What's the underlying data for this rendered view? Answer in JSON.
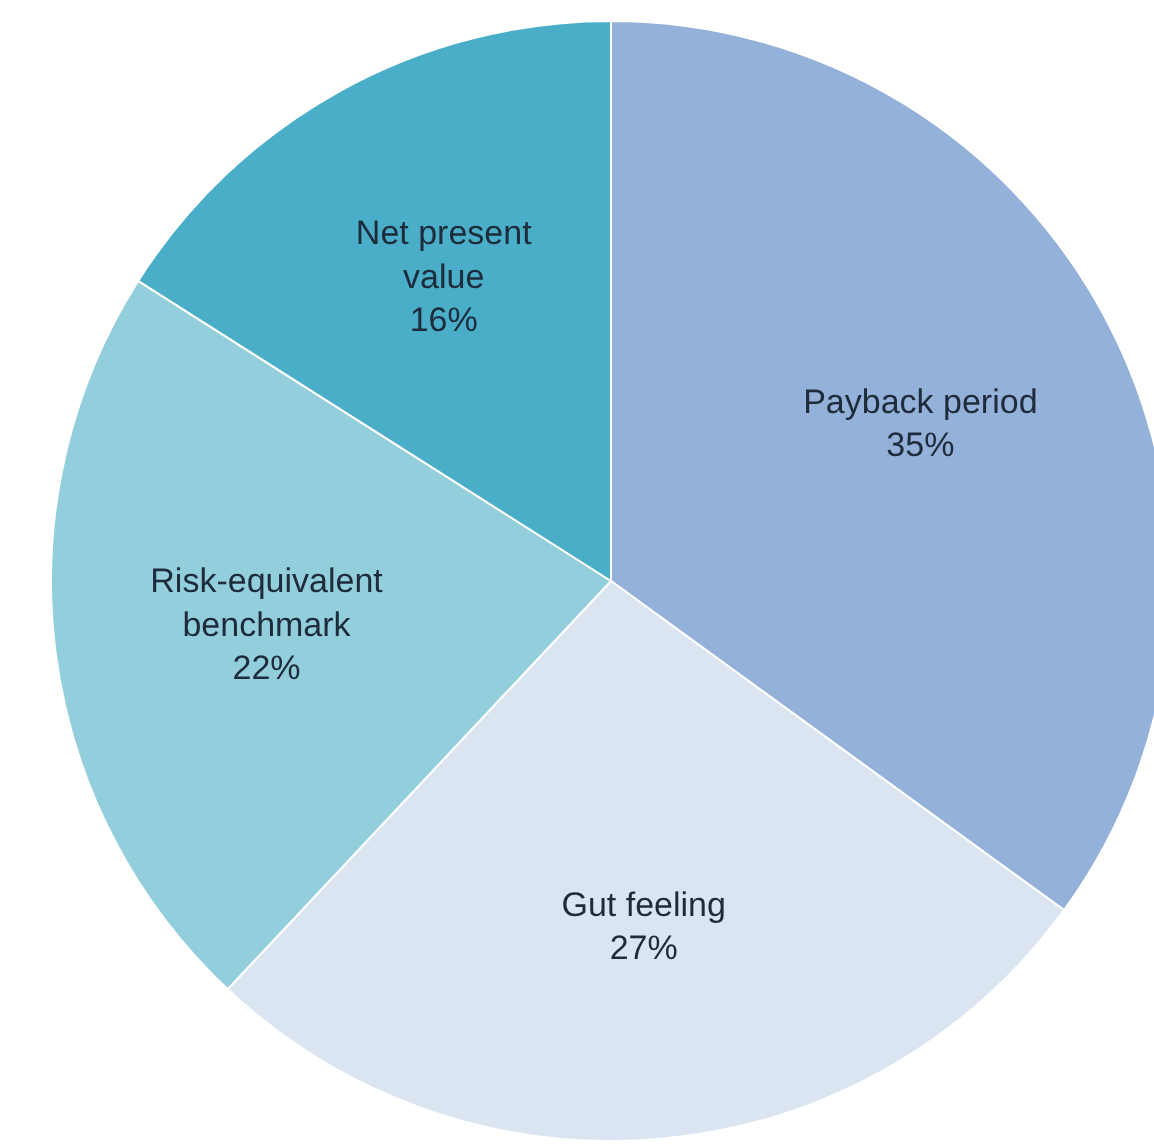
{
  "chart_data": {
    "type": "pie",
    "categories": [
      "Payback period",
      "Gut feeling",
      "Risk-equivalent benchmark",
      "Net present value"
    ],
    "values": [
      35,
      27,
      22,
      16
    ],
    "colors": [
      "#94b1d9",
      "#dbe5f2",
      "#93cedd",
      "#4aaec8"
    ],
    "value_labels": [
      "35%",
      "27%",
      "22%",
      "16%"
    ]
  }
}
